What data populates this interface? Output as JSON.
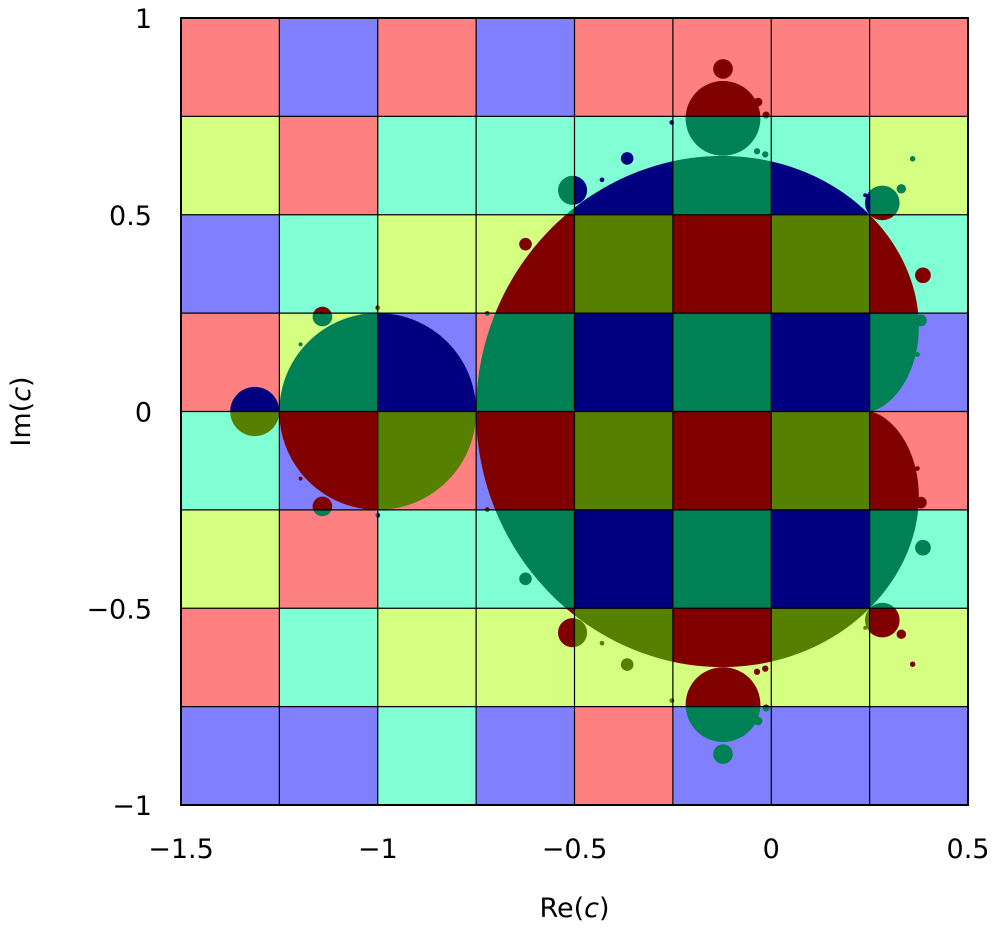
{
  "chart_data": {
    "type": "heatmap",
    "title": "",
    "xlabel": {
      "prefix": "Re(",
      "var": "c",
      "suffix": ")"
    },
    "ylabel": {
      "prefix": "Im(",
      "var": "c",
      "suffix": ")"
    },
    "xlim": [
      -1.5,
      0.5
    ],
    "ylim": [
      -1,
      1
    ],
    "x_ticks": [
      {
        "value": -1.5,
        "label": "−1.5"
      },
      {
        "value": -1,
        "label": "−1"
      },
      {
        "value": -0.5,
        "label": "−0.5"
      },
      {
        "value": 0,
        "label": "0"
      },
      {
        "value": 0.5,
        "label": "0.5"
      }
    ],
    "y_ticks": [
      {
        "value": -1,
        "label": "−1"
      },
      {
        "value": -0.5,
        "label": "−0.5"
      },
      {
        "value": 0,
        "label": "0"
      },
      {
        "value": 0.5,
        "label": "0.5"
      },
      {
        "value": 1,
        "label": "1"
      }
    ],
    "grid": true,
    "grid_step": 0.25,
    "palette": {
      "background": [
        "#ff8080",
        "#8080ff",
        "#d4ff80",
        "#80ffd4"
      ],
      "set": [
        "#800000",
        "#000080",
        "#558000",
        "#008055"
      ]
    },
    "tile_rows_top_to_bottom": [
      [
        0,
        1,
        0,
        1,
        0,
        0,
        0,
        0
      ],
      [
        2,
        0,
        3,
        3,
        3,
        3,
        3,
        2
      ],
      [
        1,
        3,
        2,
        2,
        2,
        2,
        2,
        3
      ],
      [
        0,
        2,
        1,
        0,
        1,
        1,
        1,
        1
      ],
      [
        3,
        1,
        0,
        1,
        0,
        0,
        0,
        0
      ],
      [
        2,
        0,
        3,
        3,
        3,
        3,
        3,
        3
      ],
      [
        0,
        3,
        2,
        2,
        2,
        2,
        2,
        2
      ],
      [
        1,
        1,
        3,
        1,
        0,
        1,
        1,
        1
      ]
    ],
    "set_quadrant_colors": {
      "upper_right": 0,
      "upper_left": 2,
      "lower_left": 1,
      "lower_right": 3
    },
    "series": [
      {
        "type": "cardioid",
        "center": [
          0,
          0
        ],
        "radius": 0.5
      },
      {
        "type": "disk",
        "center": [
          -1,
          0
        ],
        "radius": 0.25
      },
      {
        "type": "disk",
        "center": [
          -1.3125,
          0
        ],
        "radius": 0.0625
      },
      {
        "type": "disk",
        "center": [
          -0.1226,
          0.7449
        ],
        "radius": 0.095
      },
      {
        "type": "disk",
        "center": [
          -0.1226,
          -0.7449
        ],
        "radius": 0.095
      },
      {
        "type": "disk",
        "center": [
          -0.5049,
          0.5622
        ],
        "radius": 0.037
      },
      {
        "type": "disk",
        "center": [
          -0.5049,
          -0.5622
        ],
        "radius": 0.037
      },
      {
        "type": "disk",
        "center": [
          0.2822,
          0.5301
        ],
        "radius": 0.044
      },
      {
        "type": "disk",
        "center": [
          0.2822,
          -0.5301
        ],
        "radius": 0.044
      },
      {
        "type": "disk",
        "center": [
          -1.1406,
          0.2412
        ],
        "radius": 0.025
      },
      {
        "type": "disk",
        "center": [
          -1.1406,
          -0.2412
        ],
        "radius": 0.025
      },
      {
        "type": "disk",
        "center": [
          -0.1226,
          0.8706
        ],
        "radius": 0.025
      },
      {
        "type": "disk",
        "center": [
          -0.1226,
          -0.8706
        ],
        "radius": 0.025
      },
      {
        "type": "disk",
        "center": [
          -0.6245,
          0.4253
        ],
        "radius": 0.016
      },
      {
        "type": "disk",
        "center": [
          -0.6245,
          -0.4253
        ],
        "radius": 0.016
      },
      {
        "type": "disk",
        "center": [
          0.3855,
          0.3461
        ],
        "radius": 0.02
      },
      {
        "type": "disk",
        "center": [
          0.3855,
          -0.3461
        ],
        "radius": 0.02
      },
      {
        "type": "disk",
        "center": [
          -0.3662,
          0.6432
        ],
        "radius": 0.016
      },
      {
        "type": "disk",
        "center": [
          -0.3662,
          -0.6432
        ],
        "radius": 0.016
      },
      {
        "type": "disk",
        "center": [
          0.3802,
          0.2315
        ],
        "radius": 0.015
      },
      {
        "type": "disk",
        "center": [
          0.3802,
          -0.2315
        ],
        "radius": 0.015
      },
      {
        "type": "disk",
        "center": [
          0.3305,
          0.5659
        ],
        "radius": 0.012
      },
      {
        "type": "disk",
        "center": [
          0.3305,
          -0.5659
        ],
        "radius": 0.012
      },
      {
        "type": "disk",
        "center": [
          -0.0335,
          0.7864
        ],
        "radius": 0.011
      },
      {
        "type": "disk",
        "center": [
          -0.0335,
          -0.7864
        ],
        "radius": 0.011
      },
      {
        "type": "disk",
        "center": [
          -0.0131,
          0.7535
        ],
        "radius": 0.009
      },
      {
        "type": "disk",
        "center": [
          -0.0131,
          -0.7535
        ],
        "radius": 0.009
      },
      {
        "type": "disk",
        "center": [
          -0.0361,
          0.6613
        ],
        "radius": 0.008
      },
      {
        "type": "disk",
        "center": [
          -0.0361,
          -0.6613
        ],
        "radius": 0.008
      },
      {
        "type": "disk",
        "center": [
          -0.0153,
          0.6534
        ],
        "radius": 0.008
      },
      {
        "type": "disk",
        "center": [
          -0.0153,
          -0.6534
        ],
        "radius": 0.008
      },
      {
        "type": "disk",
        "center": [
          0.3593,
          0.6422
        ],
        "radius": 0.007
      },
      {
        "type": "disk",
        "center": [
          0.3593,
          -0.6422
        ],
        "radius": 0.007
      },
      {
        "type": "disk",
        "center": [
          0.3714,
          0.1448
        ],
        "radius": 0.006
      },
      {
        "type": "disk",
        "center": [
          0.3714,
          -0.1448
        ],
        "radius": 0.006
      },
      {
        "type": "disk",
        "center": [
          -0.2527,
          0.7346
        ],
        "radius": 0.006
      },
      {
        "type": "disk",
        "center": [
          -0.2527,
          -0.7346
        ],
        "radius": 0.006
      },
      {
        "type": "disk",
        "center": [
          -0.7217,
          0.2491
        ],
        "radius": 0.006
      },
      {
        "type": "disk",
        "center": [
          -0.7217,
          -0.2491
        ],
        "radius": 0.006
      },
      {
        "type": "disk",
        "center": [
          -1.0,
          0.2638
        ],
        "radius": 0.006
      },
      {
        "type": "disk",
        "center": [
          -1.0,
          -0.2638
        ],
        "radius": 0.006
      },
      {
        "type": "disk",
        "center": [
          -1.1961,
          0.1706
        ],
        "radius": 0.005
      },
      {
        "type": "disk",
        "center": [
          -1.1961,
          -0.1706
        ],
        "radius": 0.005
      },
      {
        "type": "disk",
        "center": [
          -0.4302,
          0.5888
        ],
        "radius": 0.006
      },
      {
        "type": "disk",
        "center": [
          -0.4302,
          -0.5888
        ],
        "radius": 0.006
      },
      {
        "type": "disk",
        "center": [
          0.2387,
          0.5497
        ],
        "radius": 0.005
      },
      {
        "type": "disk",
        "center": [
          0.2387,
          -0.5497
        ],
        "radius": 0.005
      }
    ]
  }
}
